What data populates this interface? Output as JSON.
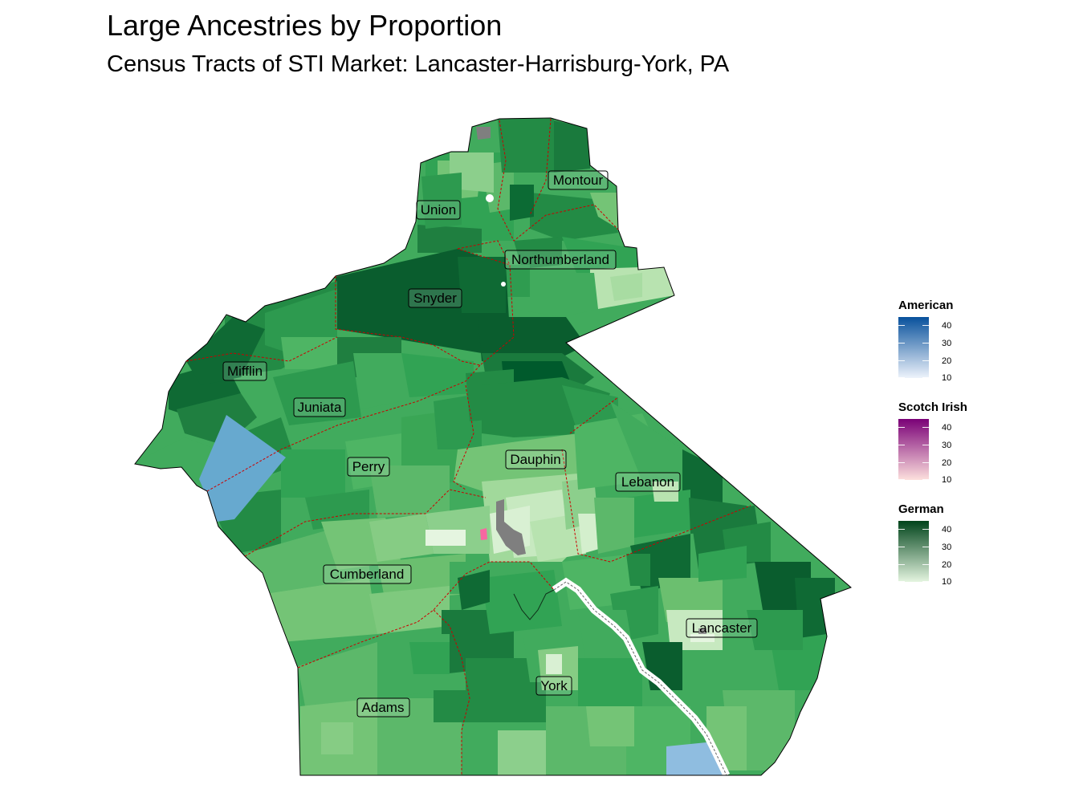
{
  "title": "Large Ancestries by Proportion",
  "subtitle": "Census Tracts of STI Market: Lancaster-Harrisburg-York, PA",
  "counties": [
    {
      "name": "Montour"
    },
    {
      "name": "Union"
    },
    {
      "name": "Northumberland"
    },
    {
      "name": "Snyder"
    },
    {
      "name": "Mifflin"
    },
    {
      "name": "Juniata"
    },
    {
      "name": "Perry"
    },
    {
      "name": "Dauphin"
    },
    {
      "name": "Lebanon"
    },
    {
      "name": "Cumberland"
    },
    {
      "name": "Lancaster"
    },
    {
      "name": "York"
    },
    {
      "name": "Adams"
    }
  ],
  "legends": [
    {
      "title": "American",
      "ticks": [
        "40",
        "30",
        "20",
        "10"
      ],
      "color_low": "#eef3fb",
      "color_high": "#08519c"
    },
    {
      "title": "Scotch Irish",
      "ticks": [
        "40",
        "30",
        "20",
        "10"
      ],
      "color_low": "#fde0dd",
      "color_high": "#7a0177"
    },
    {
      "title": "German",
      "ticks": [
        "40",
        "30",
        "20",
        "10"
      ],
      "color_low": "#e5f5e0",
      "color_high": "#00441b"
    }
  ],
  "colors": {
    "border_dashed": "#cc0000",
    "no_data": "#7f7f7f",
    "river": "#ffffff"
  }
}
